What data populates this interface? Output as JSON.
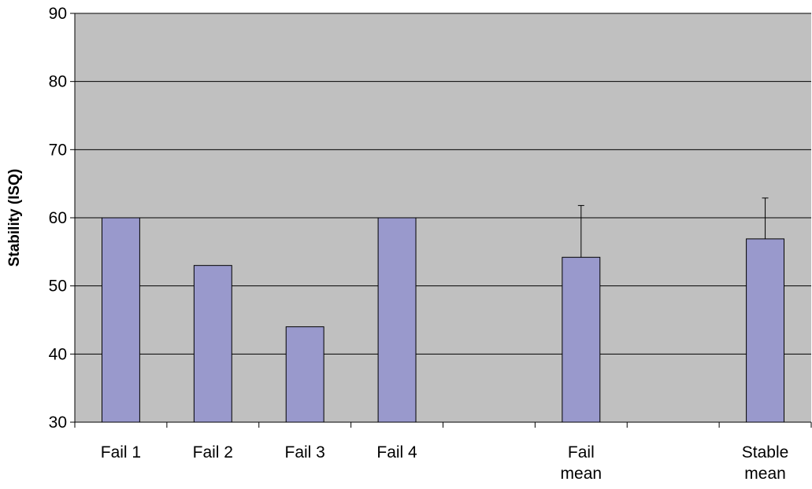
{
  "chart_data": {
    "type": "bar",
    "categories": [
      [
        "Fail 1"
      ],
      [
        "Fail 2"
      ],
      [
        "Fail 3"
      ],
      [
        "Fail 4"
      ],
      [
        ""
      ],
      [
        "Fail",
        "mean"
      ],
      [
        ""
      ],
      [
        "Stable",
        "mean"
      ]
    ],
    "values": [
      60,
      53,
      44,
      60,
      null,
      54.2,
      null,
      56.9
    ],
    "error_plus": [
      null,
      null,
      null,
      null,
      null,
      7.6,
      null,
      6.0
    ],
    "ylabel": "Stability (ISQ)",
    "xlabel": "",
    "ylim": [
      30,
      90
    ],
    "yticks": [
      30,
      40,
      50,
      60,
      70,
      80,
      90
    ],
    "grid": true,
    "colors": {
      "bar_fill": "#9999cc",
      "bar_stroke": "#000000",
      "plot_background": "#c0c0c0",
      "gridline": "#000000"
    }
  }
}
